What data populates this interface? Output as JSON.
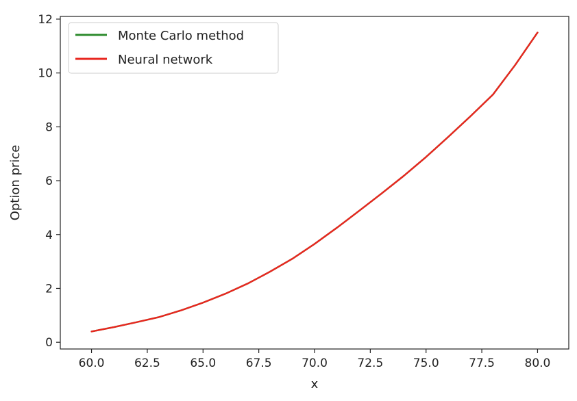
{
  "chart_data": {
    "type": "line",
    "xlabel": "x",
    "ylabel": "Option price",
    "xlim": [
      58.6,
      81.4
    ],
    "ylim": [
      -0.25,
      12.1
    ],
    "xticks": [
      60.0,
      62.5,
      65.0,
      67.5,
      70.0,
      72.5,
      75.0,
      77.5,
      80.0
    ],
    "xtick_labels": [
      "60.0",
      "62.5",
      "65.0",
      "67.5",
      "70.0",
      "72.5",
      "75.0",
      "77.5",
      "80.0"
    ],
    "yticks": [
      0,
      2,
      4,
      6,
      8,
      10,
      12
    ],
    "ytick_labels": [
      "0",
      "2",
      "4",
      "6",
      "8",
      "10",
      "12"
    ],
    "grid": false,
    "legend": "top-left",
    "x": [
      60,
      61,
      62,
      63,
      64,
      65,
      66,
      67,
      68,
      69,
      70,
      71,
      72,
      73,
      74,
      75,
      76,
      77,
      78,
      79,
      80
    ],
    "series": [
      {
        "name": "Monte Carlo method",
        "color": "#2e8b2e",
        "values": [
          0.4,
          0.56,
          0.74,
          0.93,
          1.18,
          1.47,
          1.8,
          2.18,
          2.62,
          3.1,
          3.65,
          4.25,
          4.88,
          5.52,
          6.18,
          6.88,
          7.63,
          8.4,
          9.2,
          10.3,
          11.5
        ]
      },
      {
        "name": "Neural network",
        "color": "#e8261f",
        "values": [
          0.4,
          0.56,
          0.74,
          0.93,
          1.18,
          1.47,
          1.8,
          2.18,
          2.62,
          3.1,
          3.65,
          4.25,
          4.88,
          5.52,
          6.18,
          6.88,
          7.63,
          8.4,
          9.2,
          10.3,
          11.5
        ]
      }
    ]
  }
}
